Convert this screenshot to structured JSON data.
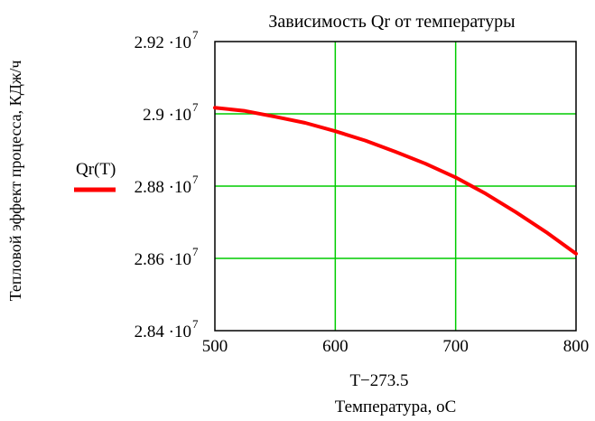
{
  "chart_data": {
    "type": "line",
    "title": "Зависимость Qr от температуры",
    "ylabel": "Тепловой эффект процесса,  КДж/ч",
    "xlabel_expr": "T−273.5",
    "xlabel": "Температура,  oC",
    "legend": {
      "label": "Qr(T)",
      "placement": "left"
    },
    "xlim": [
      500,
      800
    ],
    "ylim": [
      28400000,
      29200000
    ],
    "x_ticks": [
      500,
      600,
      700,
      800
    ],
    "y_ticks": [
      {
        "value": 28400000,
        "mantissa": "2.84",
        "exponent": "7"
      },
      {
        "value": 28600000,
        "mantissa": "2.86",
        "exponent": "7"
      },
      {
        "value": 28800000,
        "mantissa": "2.88",
        "exponent": "7"
      },
      {
        "value": 29000000,
        "mantissa": "2.9",
        "exponent": "7"
      },
      {
        "value": 29200000,
        "mantissa": "2.92",
        "exponent": "7"
      }
    ],
    "grid": true,
    "colors": {
      "line": "#ff0000",
      "grid": "#00cc00",
      "axes": "#000000"
    },
    "series": [
      {
        "x": [
          500,
          525,
          550,
          575,
          600,
          625,
          650,
          675,
          700,
          725,
          750,
          775,
          800
        ],
        "values": [
          29017000,
          29008000,
          28992000,
          28975000,
          28952000,
          28926000,
          28895000,
          28862000,
          28824000,
          28779000,
          28728000,
          28673000,
          28613000
        ]
      }
    ]
  }
}
